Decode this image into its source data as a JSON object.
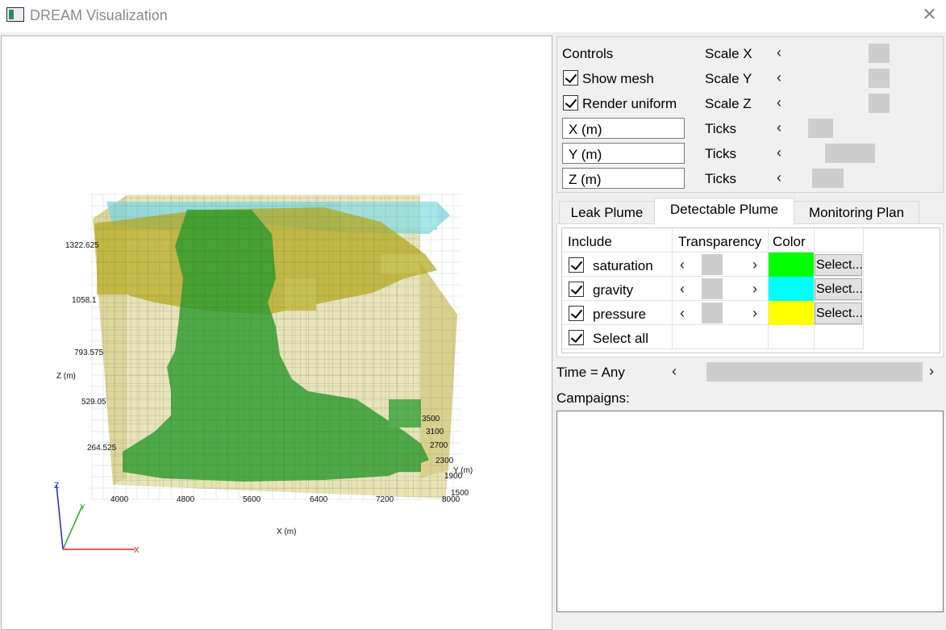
{
  "window": {
    "title": "DREAM Visualization",
    "close_glyph": "✕"
  },
  "controls": {
    "heading": "Controls",
    "show_mesh": {
      "label": "Show mesh",
      "checked": true
    },
    "render_uniform": {
      "label": "Render uniform",
      "checked": true
    },
    "axis_labels": {
      "x": "X (m)",
      "y": "Y (m)",
      "z": "Z (m)"
    },
    "scale_x": "Scale X",
    "scale_y": "Scale Y",
    "scale_z": "Scale Z",
    "ticks": "Ticks",
    "left_arrow": "‹"
  },
  "tabs": [
    {
      "label": "Leak Plume",
      "active": false
    },
    {
      "label": "Detectable Plume",
      "active": true
    },
    {
      "label": "Monitoring Plan",
      "active": false
    }
  ],
  "plume_table": {
    "headers": {
      "include": "Include",
      "transparency": "Transparency",
      "color": "Color"
    },
    "rows": [
      {
        "name": "saturation",
        "checked": true,
        "color": "#00ff00",
        "button": "Select..."
      },
      {
        "name": "gravity",
        "checked": true,
        "color": "#00ffff",
        "button": "Select..."
      },
      {
        "name": "pressure",
        "checked": true,
        "color": "#ffff00",
        "button": "Select..."
      }
    ],
    "select_all": {
      "label": "Select all",
      "checked": true
    },
    "left_arrow": "‹",
    "right_arrow": "›"
  },
  "time": {
    "label": "Time = Any",
    "left_arrow": "‹",
    "right_arrow": "›"
  },
  "campaigns": {
    "label": "Campaigns:",
    "items": []
  },
  "plot": {
    "x_axis_label": "X (m)",
    "y_axis_label": "Y (m)",
    "z_axis_label": "Z (m)",
    "x_ticks": [
      "4000",
      "4800",
      "5600",
      "6400",
      "7200",
      "8000"
    ],
    "y_ticks": [
      "3500",
      "3100",
      "2700",
      "2300",
      "1900",
      "1500"
    ],
    "z_ticks": [
      "1322.625",
      "1058.1",
      "793.575",
      "529.05",
      "264.525"
    ],
    "triad": {
      "x": "X",
      "y": "Y",
      "z": "Z"
    },
    "colors": {
      "saturation": "#2e9b2e",
      "gravity": "#7ed6dc",
      "pressure": "#b5aa1e",
      "floor": "#ddd79a"
    }
  }
}
